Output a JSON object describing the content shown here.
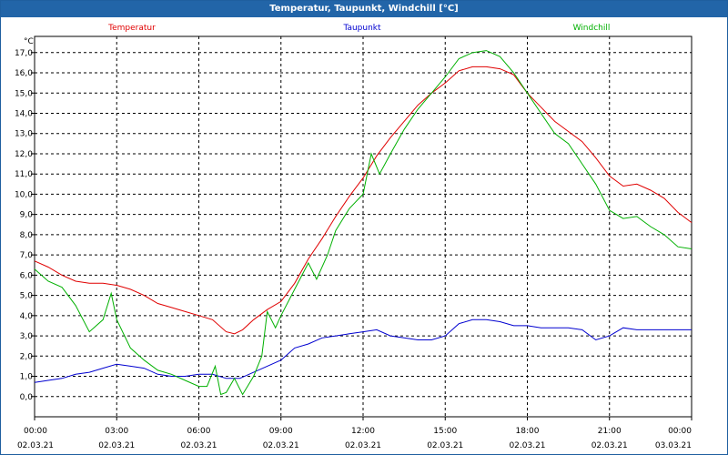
{
  "window": {
    "title": "Temperatur, Taupunkt, Windchill [°C]"
  },
  "chart_data": {
    "type": "line",
    "title": "Temperatur, Taupunkt, Windchill [°C]",
    "ylabel": "°C",
    "xlabel": "",
    "ylim": [
      -1.0,
      17.8
    ],
    "yticks": [
      "0,0",
      "1,0",
      "2,0",
      "3,0",
      "4,0",
      "5,0",
      "6,0",
      "7,0",
      "8,0",
      "9,0",
      "10,0",
      "11,0",
      "12,0",
      "13,0",
      "14,0",
      "15,0",
      "16,0",
      "17,0"
    ],
    "xlim": [
      0,
      24
    ],
    "xticks": [
      {
        "x": 0,
        "time": "00:00",
        "date": "02.03.21"
      },
      {
        "x": 3,
        "time": "03:00",
        "date": "02.03.21"
      },
      {
        "x": 6,
        "time": "06:00",
        "date": "02.03.21"
      },
      {
        "x": 9,
        "time": "09:00",
        "date": "02.03.21"
      },
      {
        "x": 12,
        "time": "12:00",
        "date": "02.03.21"
      },
      {
        "x": 15,
        "time": "15:00",
        "date": "02.03.21"
      },
      {
        "x": 18,
        "time": "18:00",
        "date": "02.03.21"
      },
      {
        "x": 21,
        "time": "21:00",
        "date": "02.03.21"
      },
      {
        "x": 24,
        "time": "00:00",
        "date": "03.03.21"
      }
    ],
    "grid": true,
    "legend_position": "top",
    "series": [
      {
        "name": "Temperatur",
        "color": "#e00000",
        "points": [
          [
            0,
            6.7
          ],
          [
            0.5,
            6.4
          ],
          [
            1,
            6.0
          ],
          [
            1.5,
            5.7
          ],
          [
            2,
            5.6
          ],
          [
            2.5,
            5.6
          ],
          [
            3,
            5.5
          ],
          [
            3.5,
            5.3
          ],
          [
            4,
            5.0
          ],
          [
            4.5,
            4.6
          ],
          [
            5,
            4.4
          ],
          [
            5.5,
            4.2
          ],
          [
            6,
            4.0
          ],
          [
            6.5,
            3.8
          ],
          [
            7,
            3.2
          ],
          [
            7.3,
            3.1
          ],
          [
            7.6,
            3.3
          ],
          [
            8,
            3.8
          ],
          [
            8.5,
            4.3
          ],
          [
            9,
            4.7
          ],
          [
            9.5,
            5.6
          ],
          [
            10,
            6.8
          ],
          [
            10.5,
            7.8
          ],
          [
            11,
            8.9
          ],
          [
            11.5,
            9.9
          ],
          [
            12,
            10.8
          ],
          [
            12.5,
            11.9
          ],
          [
            13,
            12.8
          ],
          [
            13.5,
            13.6
          ],
          [
            14,
            14.4
          ],
          [
            14.5,
            15.0
          ],
          [
            15,
            15.5
          ],
          [
            15.5,
            16.1
          ],
          [
            16,
            16.3
          ],
          [
            16.5,
            16.3
          ],
          [
            17,
            16.2
          ],
          [
            17.5,
            15.9
          ],
          [
            18,
            15.0
          ],
          [
            18.5,
            14.3
          ],
          [
            19,
            13.6
          ],
          [
            19.5,
            13.1
          ],
          [
            20,
            12.6
          ],
          [
            20.5,
            11.8
          ],
          [
            21,
            10.9
          ],
          [
            21.5,
            10.4
          ],
          [
            22,
            10.5
          ],
          [
            22.5,
            10.2
          ],
          [
            23,
            9.8
          ],
          [
            23.5,
            9.1
          ],
          [
            24,
            8.6
          ]
        ]
      },
      {
        "name": "Taupunkt",
        "color": "#0000d0",
        "points": [
          [
            0,
            0.7
          ],
          [
            0.5,
            0.8
          ],
          [
            1,
            0.9
          ],
          [
            1.5,
            1.1
          ],
          [
            2,
            1.2
          ],
          [
            2.5,
            1.4
          ],
          [
            3,
            1.6
          ],
          [
            3.5,
            1.5
          ],
          [
            4,
            1.4
          ],
          [
            4.5,
            1.1
          ],
          [
            5,
            1.0
          ],
          [
            5.5,
            1.0
          ],
          [
            6,
            1.1
          ],
          [
            6.5,
            1.1
          ],
          [
            7,
            0.9
          ],
          [
            7.5,
            0.9
          ],
          [
            8,
            1.2
          ],
          [
            8.5,
            1.5
          ],
          [
            9,
            1.8
          ],
          [
            9.5,
            2.4
          ],
          [
            10,
            2.6
          ],
          [
            10.5,
            2.9
          ],
          [
            11,
            3.0
          ],
          [
            11.5,
            3.1
          ],
          [
            12,
            3.2
          ],
          [
            12.5,
            3.3
          ],
          [
            13,
            3.0
          ],
          [
            13.5,
            2.9
          ],
          [
            14,
            2.8
          ],
          [
            14.5,
            2.8
          ],
          [
            15,
            3.0
          ],
          [
            15.5,
            3.6
          ],
          [
            16,
            3.8
          ],
          [
            16.5,
            3.8
          ],
          [
            17,
            3.7
          ],
          [
            17.5,
            3.5
          ],
          [
            18,
            3.5
          ],
          [
            18.5,
            3.4
          ],
          [
            19,
            3.4
          ],
          [
            19.5,
            3.4
          ],
          [
            20,
            3.3
          ],
          [
            20.5,
            2.8
          ],
          [
            21,
            3.0
          ],
          [
            21.5,
            3.4
          ],
          [
            22,
            3.3
          ],
          [
            22.5,
            3.3
          ],
          [
            23,
            3.3
          ],
          [
            23.5,
            3.3
          ],
          [
            24,
            3.3
          ]
        ]
      },
      {
        "name": "Windchill",
        "color": "#00b000",
        "points": [
          [
            0,
            6.3
          ],
          [
            0.5,
            5.7
          ],
          [
            1,
            5.4
          ],
          [
            1.5,
            4.5
          ],
          [
            2,
            3.2
          ],
          [
            2.5,
            3.8
          ],
          [
            2.8,
            5.1
          ],
          [
            3,
            3.8
          ],
          [
            3.5,
            2.4
          ],
          [
            4,
            1.8
          ],
          [
            4.5,
            1.3
          ],
          [
            5,
            1.1
          ],
          [
            5.5,
            0.8
          ],
          [
            6,
            0.5
          ],
          [
            6.3,
            0.5
          ],
          [
            6.6,
            1.5
          ],
          [
            6.8,
            0.1
          ],
          [
            7,
            0.2
          ],
          [
            7.3,
            0.9
          ],
          [
            7.6,
            0.1
          ],
          [
            8,
            1.0
          ],
          [
            8.3,
            2.0
          ],
          [
            8.5,
            4.2
          ],
          [
            8.8,
            3.4
          ],
          [
            9,
            4.0
          ],
          [
            9.5,
            5.3
          ],
          [
            10,
            6.6
          ],
          [
            10.3,
            5.8
          ],
          [
            10.7,
            7.0
          ],
          [
            11,
            8.2
          ],
          [
            11.5,
            9.3
          ],
          [
            12,
            10.0
          ],
          [
            12.3,
            12.0
          ],
          [
            12.6,
            11.0
          ],
          [
            13,
            12.0
          ],
          [
            13.5,
            13.2
          ],
          [
            14,
            14.2
          ],
          [
            14.5,
            15.0
          ],
          [
            15,
            15.8
          ],
          [
            15.5,
            16.7
          ],
          [
            16,
            17.0
          ],
          [
            16.5,
            17.1
          ],
          [
            17,
            16.8
          ],
          [
            17.5,
            16.0
          ],
          [
            18,
            15.0
          ],
          [
            18.5,
            14.0
          ],
          [
            19,
            13.0
          ],
          [
            19.5,
            12.5
          ],
          [
            20,
            11.5
          ],
          [
            20.5,
            10.5
          ],
          [
            21,
            9.2
          ],
          [
            21.5,
            8.8
          ],
          [
            22,
            8.9
          ],
          [
            22.5,
            8.4
          ],
          [
            23,
            8.0
          ],
          [
            23.5,
            7.4
          ],
          [
            24,
            7.3
          ]
        ]
      }
    ]
  }
}
